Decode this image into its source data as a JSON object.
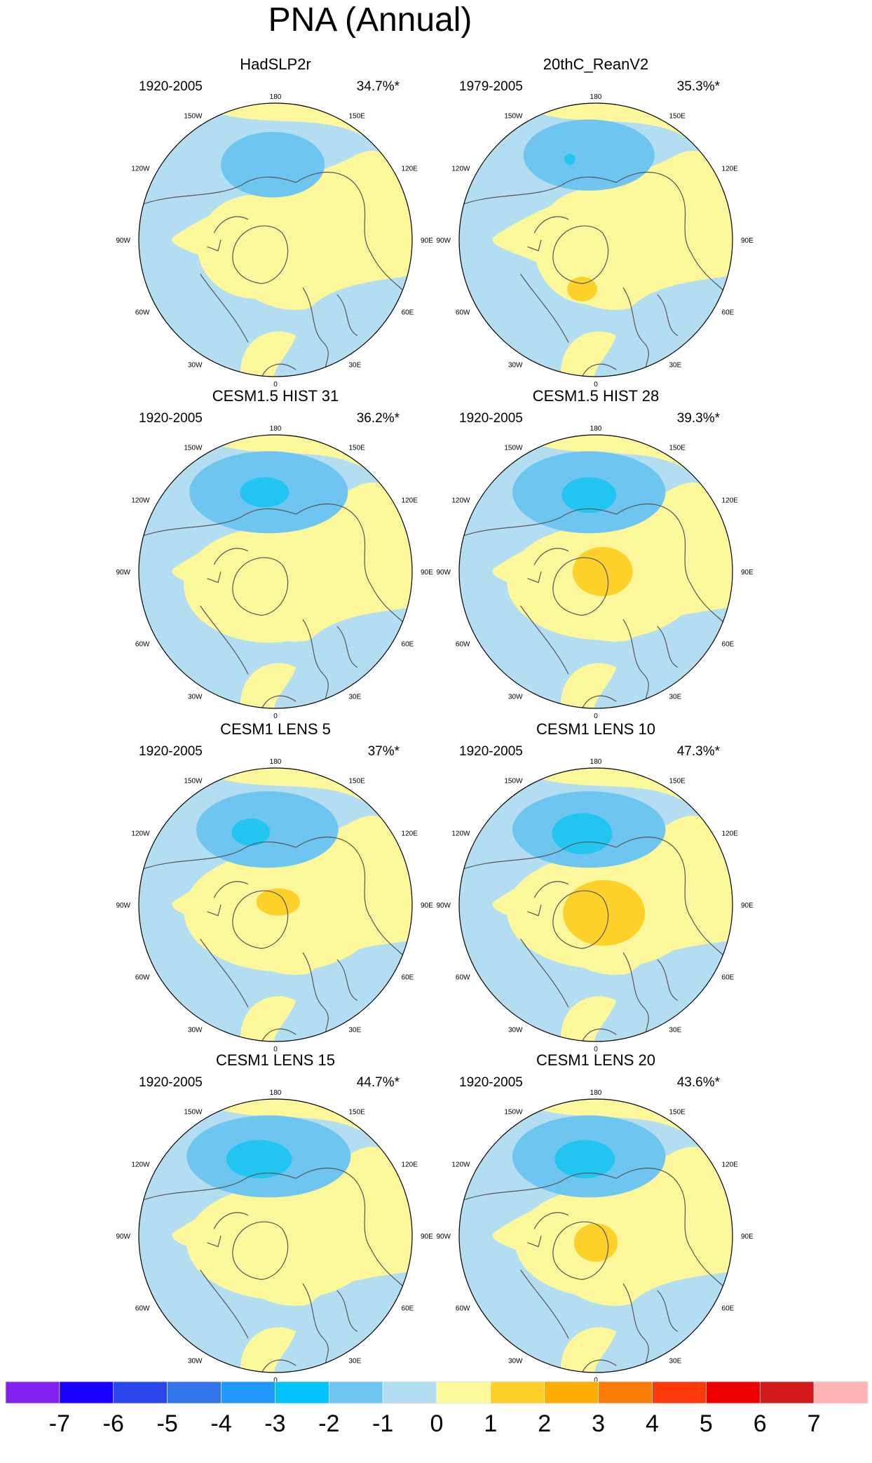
{
  "figure": {
    "title": "PNA (Annual)"
  },
  "lon_labels": [
    "180",
    "150E",
    "120E",
    "90E",
    "60E",
    "30E",
    "0",
    "30W",
    "60W",
    "90W",
    "120W",
    "150W"
  ],
  "colors": {
    "neg3": "#22c4f0",
    "neg2": "#6ec6f0",
    "neg1": "#b3def2",
    "pos1": "#fdf79b",
    "pos2": "#fdd12a",
    "coast": "#555555",
    "frame": "#000000"
  },
  "chart_data": [
    {
      "type": "map",
      "title": "HadSLP2r",
      "period": "1920-2005",
      "variance": "34.7%*"
    },
    {
      "type": "map",
      "title": "20thC_ReanV2",
      "period": "1979-2005",
      "variance": "35.3%*"
    },
    {
      "type": "map",
      "title": "CESM1.5 HIST 31",
      "period": "1920-2005",
      "variance": "36.2%*"
    },
    {
      "type": "map",
      "title": "CESM1.5 HIST 28",
      "period": "1920-2005",
      "variance": "39.3%*"
    },
    {
      "type": "map",
      "title": "CESM1 LENS 5",
      "period": "1920-2005",
      "variance": "37%*"
    },
    {
      "type": "map",
      "title": "CESM1 LENS 10",
      "period": "1920-2005",
      "variance": "47.3%*"
    },
    {
      "type": "map",
      "title": "CESM1 LENS 15",
      "period": "1920-2005",
      "variance": "44.7%*"
    },
    {
      "type": "map",
      "title": "CESM1 LENS 20",
      "period": "1920-2005",
      "variance": "43.6%*"
    }
  ],
  "colorbar": {
    "levels": [
      "-7",
      "-6",
      "-5",
      "-4",
      "-3",
      "-2",
      "-1",
      "0",
      "1",
      "2",
      "3",
      "4",
      "5",
      "6",
      "7"
    ],
    "colors": [
      "#8122ee",
      "#1a00ff",
      "#2a47ec",
      "#3374e8",
      "#1f98fa",
      "#00c3fa",
      "#6ec6f0",
      "#b3def2",
      "#fdf79b",
      "#fdd12a",
      "#fbad06",
      "#fa7d0c",
      "#ff3a0a",
      "#ec0000",
      "#d31a1a",
      "#ffb3b3"
    ]
  }
}
